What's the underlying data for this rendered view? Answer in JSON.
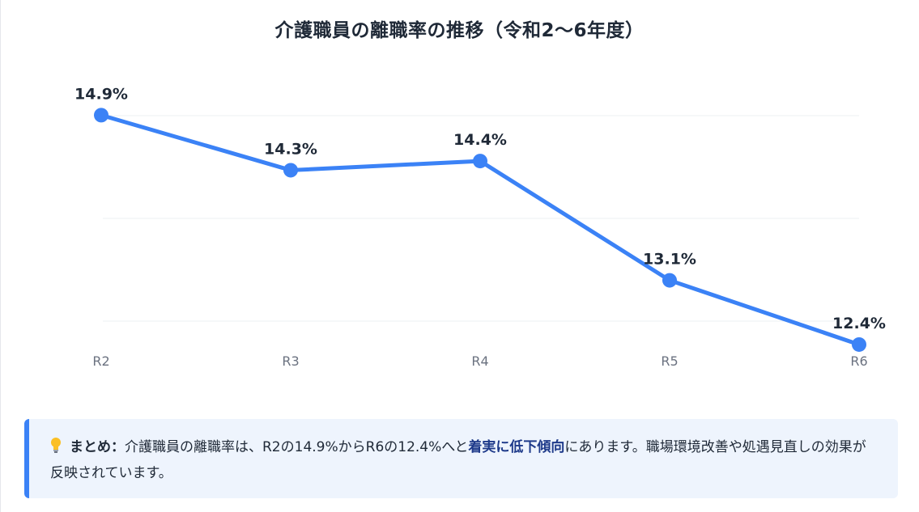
{
  "chart_data": {
    "type": "line",
    "title": "介護職員の離職率の推移（令和2〜6年度）",
    "categories": [
      "R2",
      "R3",
      "R4",
      "R5",
      "R6"
    ],
    "series": [
      {
        "values": [
          14.9,
          14.3,
          14.4,
          13.1,
          12.4
        ]
      }
    ],
    "data_labels": [
      "14.9%",
      "14.3%",
      "14.4%",
      "13.1%",
      "12.4%"
    ],
    "unit": "%",
    "ylim": [
      12.1,
      15.3
    ],
    "grid": true,
    "legend": "none",
    "colors": {
      "line": "#3b82f6",
      "grid": "#eef0f3",
      "tick": "#6b7280",
      "label": "#1f2937"
    }
  },
  "summary": {
    "icon": "lightbulb-icon",
    "lead": "まとめ：",
    "text_before": "介護職員の離職率は、R2の14.9%からR6の12.4%へと",
    "emphasis": "着実に低下傾向",
    "text_after": "にあります。職場環境改善や処遇見直しの効果が反映されています。",
    "accent_color": "#3b82f6",
    "background": "#eef4fd"
  }
}
